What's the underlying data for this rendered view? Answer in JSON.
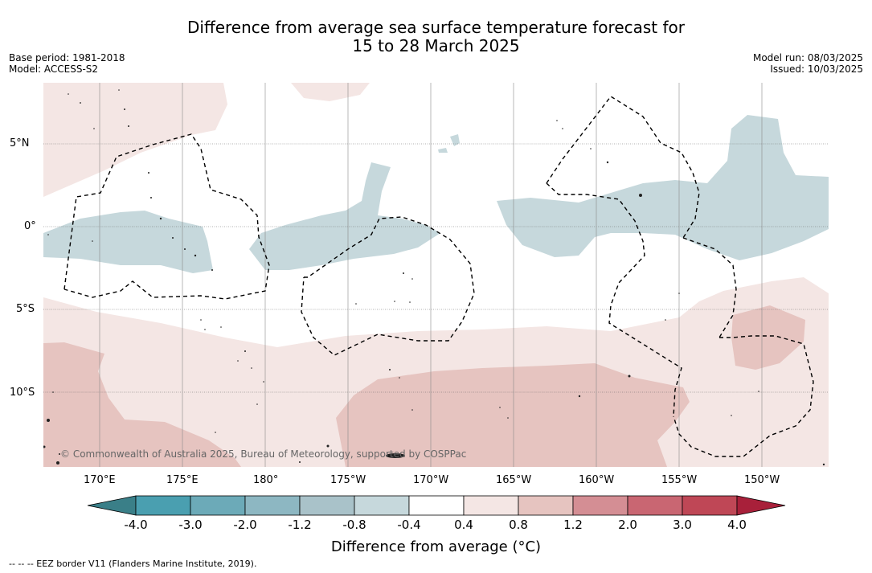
{
  "title": {
    "line1": "Difference from average sea surface temperature forecast for",
    "line2": "15 to 28 March 2025"
  },
  "meta": {
    "base_period": "Base period: 1981-2018",
    "model": "Model: ACCESS-S2",
    "model_run": "Model run: 08/03/2025",
    "issued": "Issued: 10/03/2025"
  },
  "map": {
    "lat_labels": [
      "5°N",
      "0°",
      "5°S",
      "10°S"
    ],
    "lon_labels": [
      "170°E",
      "175°E",
      "180°",
      "175°W",
      "170°W",
      "165°W",
      "160°W",
      "155°W",
      "150°W"
    ],
    "copyright": "© Commonwealth of Australia 2025, Bureau of Meteorology, supported by COSPPac",
    "colors": {
      "cool_0_4_0_8": "#c6d8dc",
      "warm_0_4_0_8": "#f4e6e4",
      "warm_0_8_1_2": "#e6c4c0",
      "land": "#222222",
      "eez": "#000000"
    }
  },
  "colorbar": {
    "tick_labels": [
      "-4.0",
      "-3.0",
      "-2.0",
      "-1.2",
      "-0.8",
      "-0.4",
      "0.4",
      "0.8",
      "1.2",
      "2.0",
      "3.0",
      "4.0"
    ],
    "colors": [
      "#3a7f88",
      "#4a9fb0",
      "#6caab8",
      "#8db7c2",
      "#a9c2c9",
      "#c6d8dc",
      "#ffffff",
      "#f4e6e4",
      "#e6c4c0",
      "#d48e94",
      "#c96672",
      "#bf4756",
      "#a8203a"
    ],
    "title": "Difference from average (°C)"
  },
  "footnote": "--  --  -- EEZ border V11 (Flanders Marine Institute, 2019)."
}
